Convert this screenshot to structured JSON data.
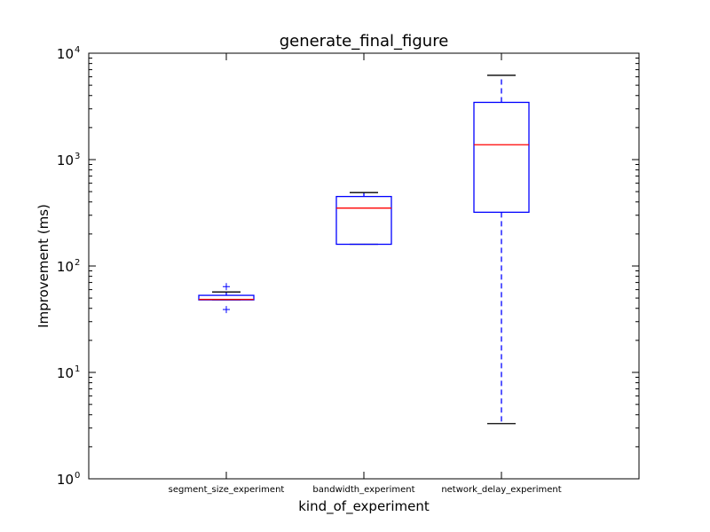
{
  "chart_data": {
    "type": "box",
    "title": "generate_final_figure",
    "xlabel": "kind_of_experiment",
    "ylabel": "Improvement (ms)",
    "yscale": "log",
    "ylim": [
      1,
      10000
    ],
    "yticks": [
      {
        "value": 1,
        "base": "10",
        "exp": "0"
      },
      {
        "value": 10,
        "base": "10",
        "exp": "1"
      },
      {
        "value": 100,
        "base": "10",
        "exp": "2"
      },
      {
        "value": 1000,
        "base": "10",
        "exp": "3"
      },
      {
        "value": 10000,
        "base": "10",
        "exp": "4"
      }
    ],
    "grid": false,
    "categories": [
      "segment_size_experiment",
      "bandwidth_experiment",
      "network_delay_experiment"
    ],
    "boxes": [
      {
        "category": "segment_size_experiment",
        "whisker_low": 48,
        "q1": 48,
        "median": 48.5,
        "q3": 53,
        "whisker_high": 57,
        "fliers": [
          64,
          39
        ]
      },
      {
        "category": "bandwidth_experiment",
        "whisker_low": 160,
        "q1": 160,
        "median": 350,
        "q3": 450,
        "whisker_high": 490,
        "fliers": []
      },
      {
        "category": "network_delay_experiment",
        "whisker_low": 3.3,
        "q1": 320,
        "median": 1380,
        "q3": 3450,
        "whisker_high": 6200,
        "fliers": []
      }
    ],
    "colors": {
      "box": "#0000ff",
      "median": "#ff0000",
      "cap": "#000000",
      "flier": "#0000ff",
      "axes": "#000000"
    }
  }
}
